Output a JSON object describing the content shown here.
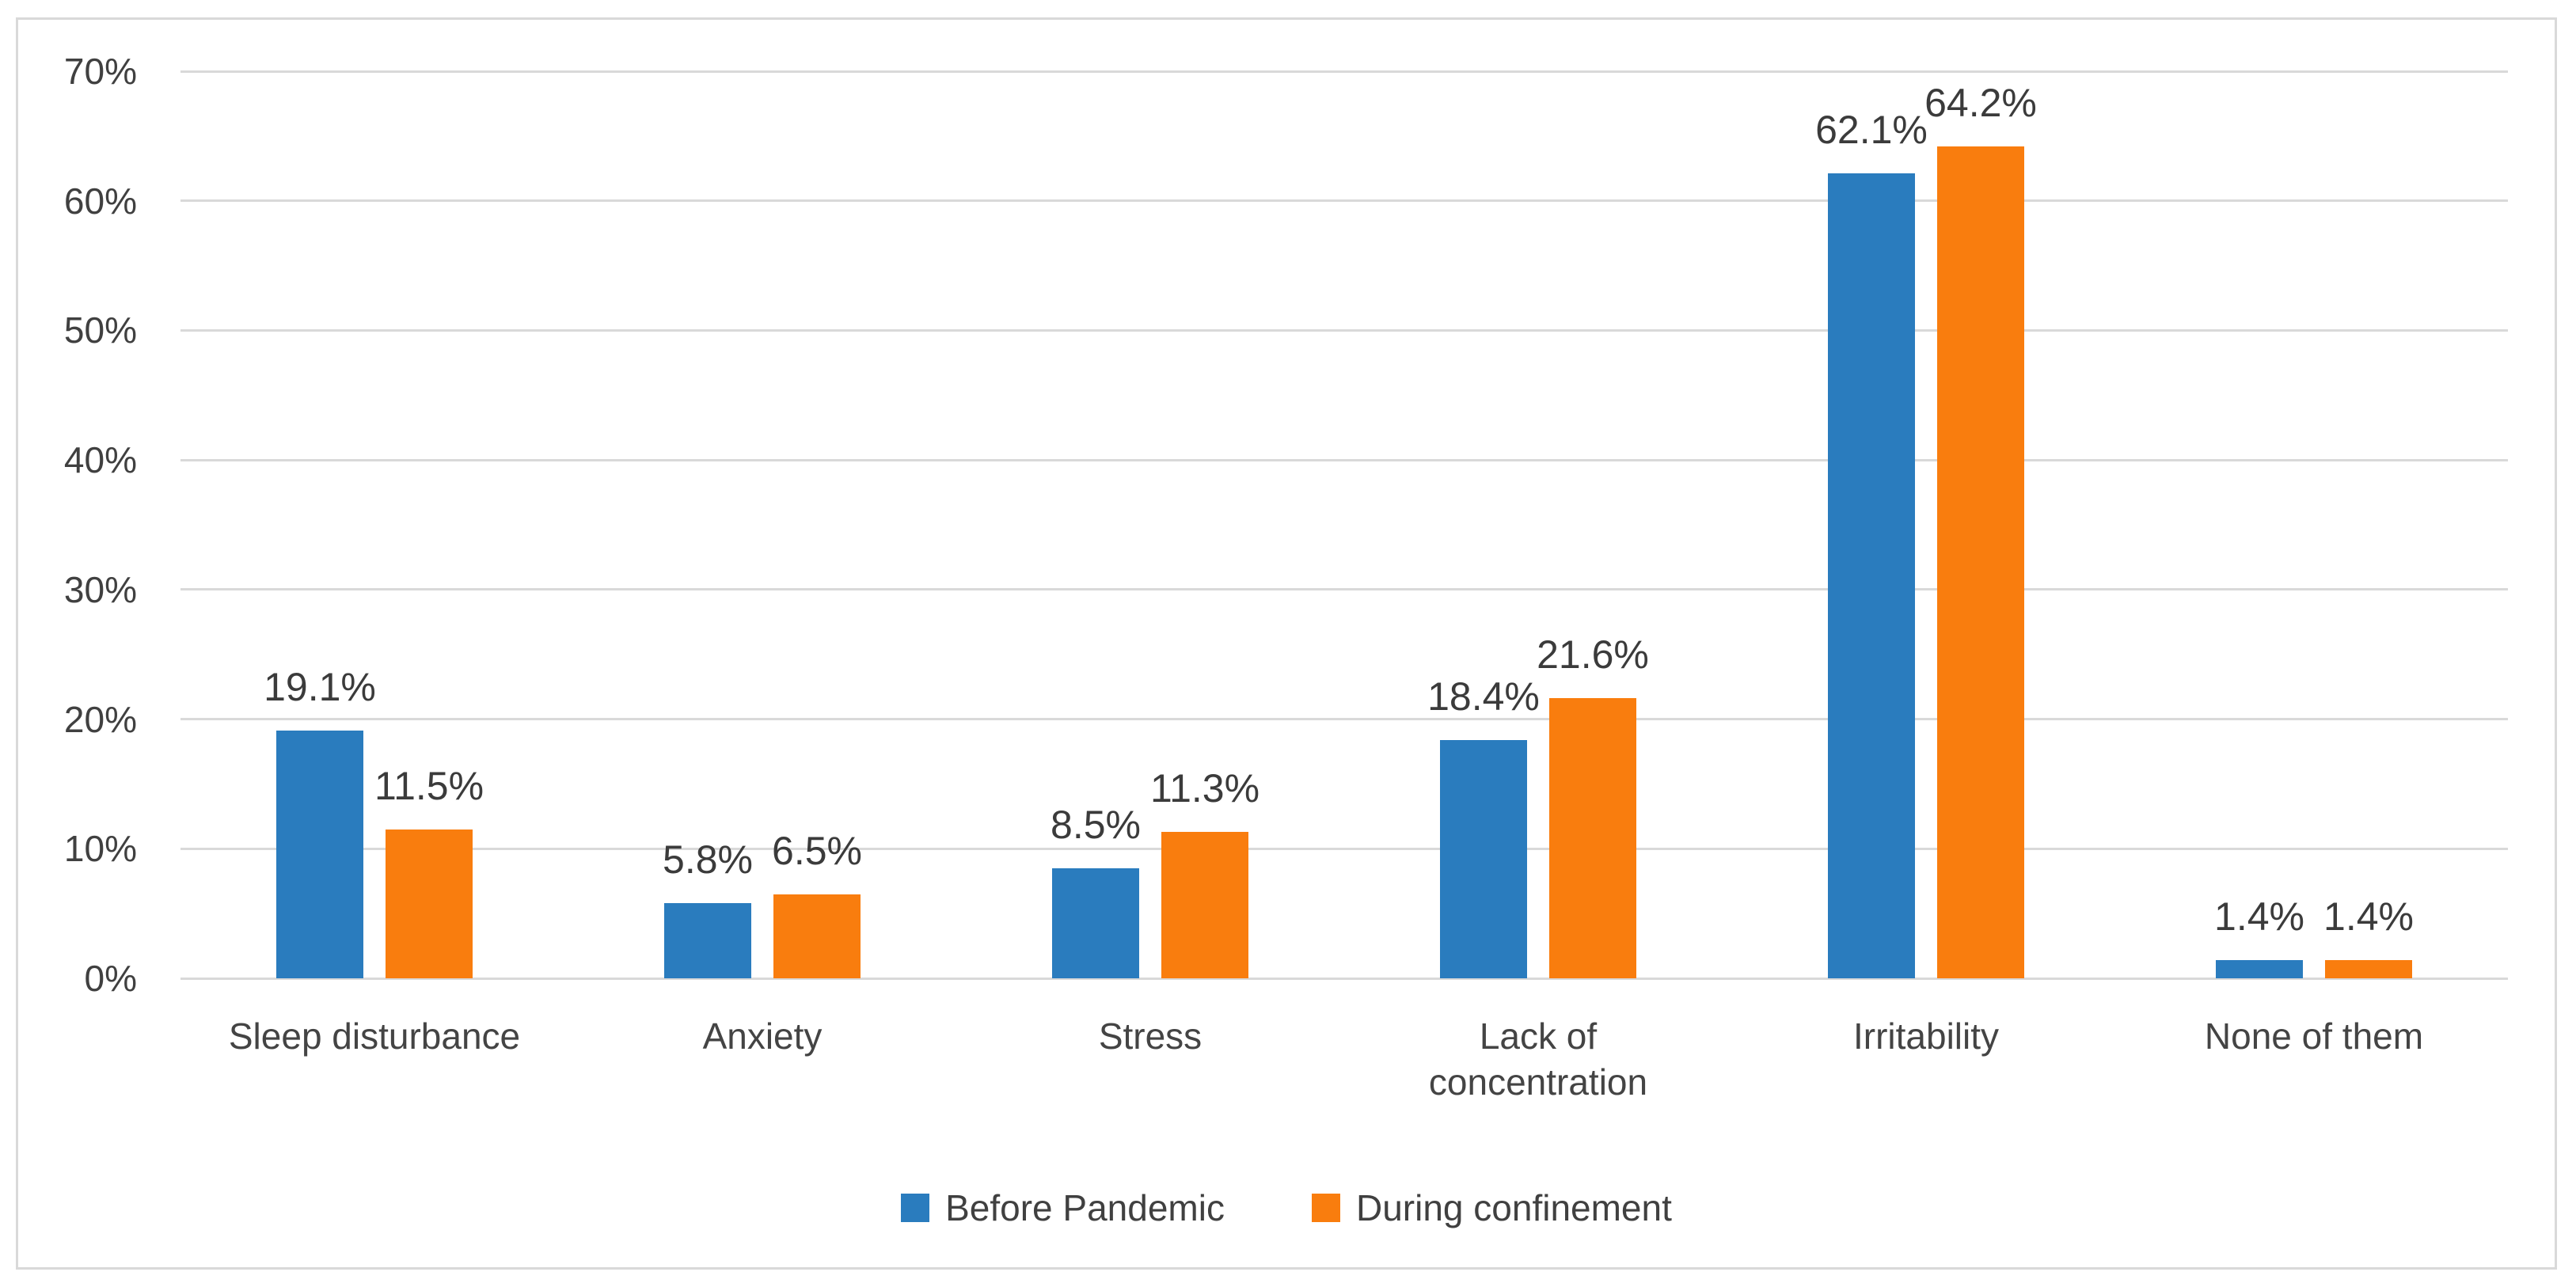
{
  "chart_data": {
    "type": "bar",
    "title": "",
    "xlabel": "",
    "ylabel": "",
    "categories": [
      "Sleep disturbance",
      "Anxiety",
      "Stress",
      "Lack of\nconcentration",
      "Irritability",
      "None of them"
    ],
    "series": [
      {
        "name": "Before Pandemic",
        "color": "#2A7CBE",
        "values": [
          19.1,
          5.8,
          8.5,
          18.4,
          62.1,
          1.4
        ],
        "labels": [
          "19.1%",
          "5.8%",
          "8.5%",
          "18.4%",
          "62.1%",
          "1.4%"
        ]
      },
      {
        "name": "During confinement",
        "color": "#F97D0E",
        "values": [
          11.5,
          6.5,
          11.3,
          21.6,
          64.2,
          1.4
        ],
        "labels": [
          "11.5%",
          "6.5%",
          "11.3%",
          "21.6%",
          "64.2%",
          "1.4%"
        ]
      }
    ],
    "ylim": [
      0,
      70
    ],
    "ytick_step": 10,
    "yticks": [
      "0%",
      "10%",
      "20%",
      "30%",
      "40%",
      "50%",
      "60%",
      "70%"
    ],
    "grid": "horizontal",
    "legend_position": "bottom",
    "colors": {
      "gridline": "#D9D9D9",
      "frame_border": "#D9D9D9",
      "tick_text": "#404040",
      "category_text": "#444444",
      "data_label_text": "#3B3B3B",
      "background": "#FFFFFF"
    }
  }
}
